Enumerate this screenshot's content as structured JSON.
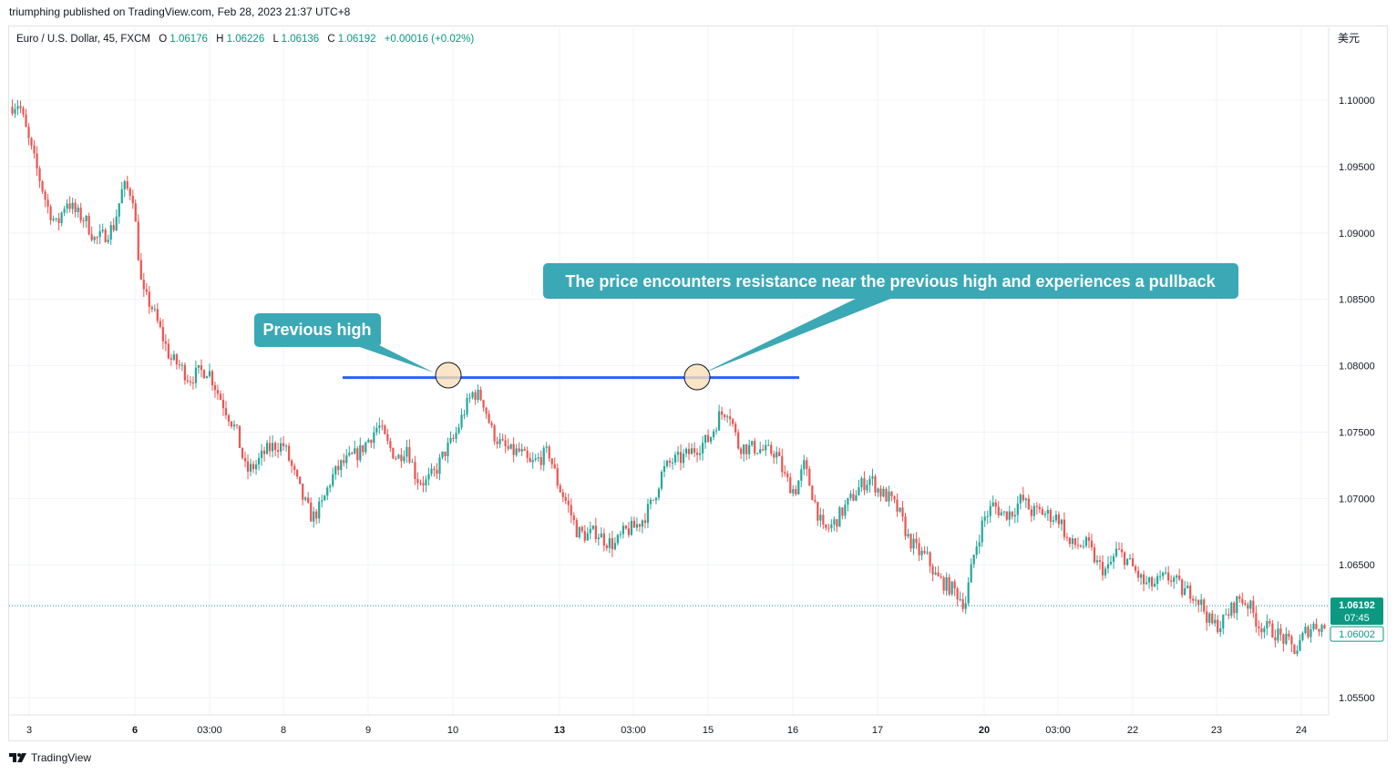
{
  "header": {
    "published_by": "triumphing published on TradingView.com, Feb 28, 2023 21:37 UTC+8"
  },
  "footer": {
    "brand": "TradingView",
    "logo_icon": "tradingview-logo-icon"
  },
  "chart_data": {
    "type": "candlestick",
    "symbol_info": {
      "name": "Euro / U.S. Dollar, 45, FXCM",
      "o_label": "O",
      "o": "1.06176",
      "h_label": "H",
      "h": "1.06226",
      "l_label": "L",
      "l": "1.06136",
      "c_label": "C",
      "c": "1.06192",
      "change": "+0.00016 (+0.02%)"
    },
    "currency_label": "美元",
    "ylim": [
      1.0535,
      1.105
    ],
    "y_ticks": [
      "1.10000",
      "1.09500",
      "1.09000",
      "1.08500",
      "1.08000",
      "1.07500",
      "1.07000",
      "1.06500",
      "1.05500"
    ],
    "x_ticks": [
      {
        "label": "3",
        "bold": false
      },
      {
        "label": "6",
        "bold": true
      },
      {
        "label": "03:00",
        "bold": false
      },
      {
        "label": "8",
        "bold": false
      },
      {
        "label": "9",
        "bold": false
      },
      {
        "label": "10",
        "bold": false
      },
      {
        "label": "13",
        "bold": true
      },
      {
        "label": "03:00",
        "bold": false
      },
      {
        "label": "15",
        "bold": false
      },
      {
        "label": "16",
        "bold": false
      },
      {
        "label": "17",
        "bold": false
      },
      {
        "label": "20",
        "bold": true
      },
      {
        "label": "03:00",
        "bold": false
      },
      {
        "label": "22",
        "bold": false
      },
      {
        "label": "23",
        "bold": false
      },
      {
        "label": "24",
        "bold": false
      }
    ],
    "price_path": [
      1.0995,
      1.0998,
      1.097,
      1.0945,
      1.092,
      1.0905,
      1.0925,
      1.0915,
      1.091,
      1.0895,
      1.0898,
      1.0905,
      1.0935,
      1.093,
      1.0855,
      1.0845,
      1.0825,
      1.0805,
      1.08,
      1.079,
      1.0795,
      1.0797,
      1.078,
      1.0765,
      1.075,
      1.072,
      1.0725,
      1.0735,
      1.074,
      1.074,
      1.072,
      1.07,
      1.0685,
      1.0695,
      1.0715,
      1.0725,
      1.073,
      1.0735,
      1.0745,
      1.0755,
      1.074,
      1.073,
      1.074,
      1.0715,
      1.0712,
      1.072,
      1.0735,
      1.0745,
      1.0765,
      1.078,
      1.0775,
      1.075,
      1.074,
      1.0735,
      1.0735,
      1.0725,
      1.073,
      1.0735,
      1.071,
      1.0695,
      1.0675,
      1.0672,
      1.0675,
      1.0668,
      1.0665,
      1.0675,
      1.0678,
      1.0685,
      1.0698,
      1.072,
      1.0728,
      1.073,
      1.0735,
      1.074,
      1.0745,
      1.0762,
      1.0768,
      1.074,
      1.0738,
      1.0738,
      1.0735,
      1.0735,
      1.0715,
      1.0705,
      1.0725,
      1.07,
      1.0675,
      1.068,
      1.069,
      1.07,
      1.071,
      1.0715,
      1.0705,
      1.07,
      1.069,
      1.067,
      1.066,
      1.0655,
      1.064,
      1.0635,
      1.063,
      1.062,
      1.066,
      1.0685,
      1.0695,
      1.0688,
      1.069,
      1.07,
      1.069,
      1.069,
      1.0687,
      1.0685,
      1.0665,
      1.0665,
      1.0665,
      1.065,
      1.0645,
      1.066,
      1.0655,
      1.0645,
      1.0635,
      1.0635,
      1.064,
      1.064,
      1.063,
      1.063,
      1.062,
      1.0605,
      1.0605,
      1.0615,
      1.0625,
      1.062,
      1.0605,
      1.0602,
      1.0598,
      1.0592,
      1.0585,
      1.06,
      1.0605,
      1.0603
    ],
    "last_price_tag": {
      "value": "1.06192",
      "countdown": "07:45"
    },
    "bid_price_tag": {
      "value": "1.06002"
    },
    "resistance_level": 1.0791,
    "annotations": {
      "previous_high": "Previous high",
      "resistance_note": "The price encounters resistance near the previous high and experiences a pullback"
    },
    "colors": {
      "up": "#26a69a",
      "down": "#ef5350",
      "resistance_line": "#2962ff",
      "callout_bg": "#3ba8b5",
      "callout_text": "#ffffff",
      "marker_fill": "#f9dfb8",
      "price_tag_green": "#0b9981",
      "grid": "#f0f3fa",
      "axis_text": "#131722"
    }
  }
}
